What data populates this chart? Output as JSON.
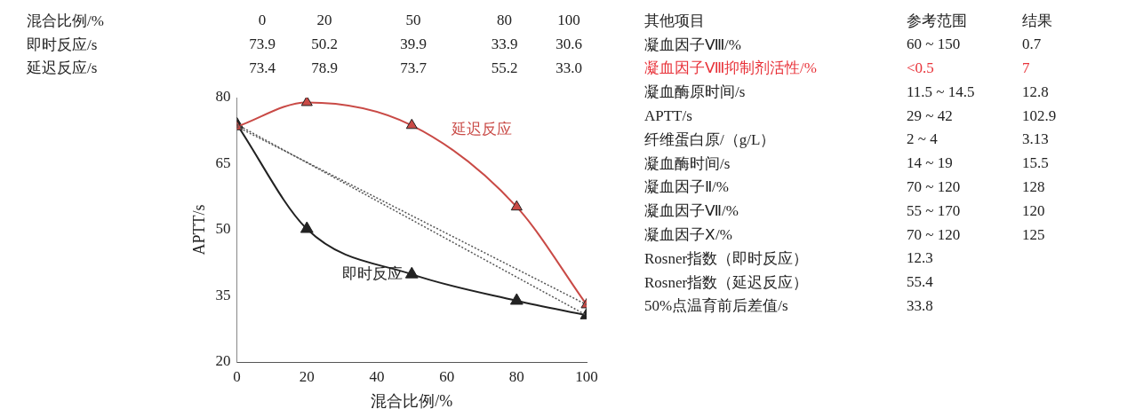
{
  "chart_data": [
    {
      "type": "other",
      "annotations": [
        "混合比例/%\t0\t20\t50\t80\t100",
        "即时反应/s\t73.9\t50.2\t39.9\t33.9\t30.6",
        "延迟反应/s\t73.4\t78.9\t73.7\t55.2\t33.0"
      ]
    },
    {
      "type": "line",
      "xlabel": "混合比例/%",
      "ylabel": "APTT/s",
      "x": [
        0,
        20,
        50,
        80,
        100
      ],
      "xlim": [
        0,
        100
      ],
      "xticks": [
        0,
        20,
        40,
        60,
        80,
        100
      ],
      "ylim": [
        20,
        80
      ],
      "yticks": [
        20,
        35,
        50,
        65,
        80
      ],
      "marker": "triangle",
      "series": [
        {
          "name": "即时反应",
          "color": "#222222",
          "values": [
            73.9,
            50.2,
            39.9,
            33.9,
            30.6
          ]
        },
        {
          "name": "延迟反应",
          "color": "#c94a46",
          "values": [
            73.4,
            78.9,
            73.7,
            55.2,
            33.0
          ]
        },
        {
          "type": "line",
          "color": "#555555",
          "values": [
            73.9,
            null,
            null,
            null,
            30.6
          ],
          "line_style": "dotted",
          "marker": "none"
        },
        {
          "type": "line",
          "color": "#555555",
          "values": [
            73.4,
            null,
            null,
            null,
            33.0
          ],
          "line_style": "dotted",
          "marker": "none"
        }
      ]
    },
    {
      "type": "other",
      "annotations": [
        "其他项目\t参考范围\t结果",
        "凝血因子Ⅷ/%\t60 ~ 150\t0.7",
        "凝血因子Ⅷ抑制剂活性/%\t<0.5\t7",
        "凝血酶原时间/s\t11.5 ~ 14.5\t12.8",
        "APTT/s\t29 ~ 42\t102.9",
        "纤维蛋白原/（g/L）\t2 ~ 4\t3.13",
        "凝血酶时间/s\t14 ~ 19\t15.5",
        "凝血因子Ⅱ/%\t70 ~ 120\t128",
        "凝血因子Ⅶ/%\t55 ~ 170\t120",
        "凝血因子Ⅹ/%\t70 ~ 120\t125",
        "Rosner指数（即时反应）\t12.3",
        "Rosner指数（延迟反应）\t55.4",
        "50%点温育前后差值/s\t33.8"
      ],
      "colors": [
        null,
        null,
        "#e8333a",
        null,
        null,
        null,
        null,
        null,
        null,
        null,
        null,
        null,
        null
      ]
    }
  ]
}
